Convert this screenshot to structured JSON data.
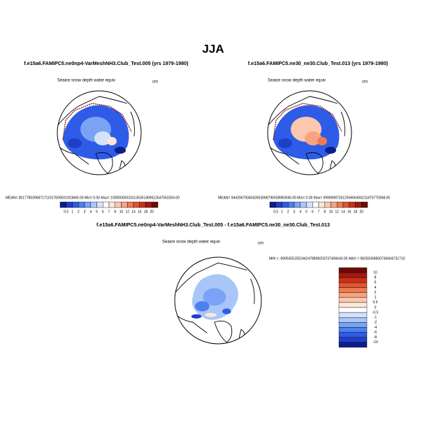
{
  "title": "JJA",
  "panels": [
    {
      "title": "f.e15a6.FAMIPC5.ne0np4-VarMeshNH3.Club_Test.005 (yrs 1979-1980)",
      "variable": "Seaice snow depth water equiv",
      "units": "cm",
      "stats": "MEAN= 8017780396871711917600501923840.00   Min=   0.00  Max= 100000003316135351409612647563264.00",
      "colorbar": {
        "levels": [
          0.5,
          1,
          2,
          3,
          4,
          5,
          6,
          7,
          8,
          10,
          12,
          14,
          16,
          18,
          20
        ],
        "colors": [
          "#0a1e8c",
          "#1f3fc8",
          "#2e5ce6",
          "#4c7ff0",
          "#7ba3f5",
          "#a9c6f8",
          "#d4e3fb",
          "#ffffff",
          "#fde6da",
          "#fbc7ad",
          "#f6a47f",
          "#ee7b52",
          "#e3542f",
          "#c9301a",
          "#a01910",
          "#6e0a06"
        ]
      }
    },
    {
      "title": "f.e15a6.FAMIPC5.ne30_ne30.Club_Test.013 (yrs 1979-1980)",
      "variable": "Seaice snow depth water equiv",
      "units": "cm",
      "stats": "MEAN= 9442967934042653068796928983040.00   Min=   0.00  Max= 99999987261256666405211875770368.00",
      "colorbar": {
        "levels": [
          0.5,
          1,
          2,
          3,
          4,
          5,
          6,
          7,
          8,
          10,
          12,
          14,
          16,
          18,
          20
        ],
        "colors": [
          "#0a1e8c",
          "#1f3fc8",
          "#2e5ce6",
          "#4c7ff0",
          "#7ba3f5",
          "#a9c6f8",
          "#d4e3fb",
          "#ffffff",
          "#fde6da",
          "#fbc7ad",
          "#f6a47f",
          "#ee7b52",
          "#e3542f",
          "#c9301a",
          "#a01910",
          "#6e0a06"
        ]
      }
    },
    {
      "title": "f.e15a6.FAMIPC5.ne0np4-VarMeshNH3.Club_Test.005 - f.e15a6.FAMIPC5.ne30_ne30.Club_Test.013",
      "variable": "Seaice snow depth water equiv",
      "units": "cm",
      "stats": "MIN = -99953551552442478898203737456640.00 MAX = 98250368500736604731710",
      "colorbar": {
        "levels": [
          10,
          8,
          6,
          4,
          2,
          1,
          0.5,
          0,
          -0.5,
          -1,
          -2,
          -4,
          -6,
          -8,
          -10
        ],
        "colors": [
          "#6e0a06",
          "#a01910",
          "#c9301a",
          "#e3542f",
          "#ee7b52",
          "#f6a47f",
          "#fbc7ad",
          "#fde6da",
          "#ffffff",
          "#d4e3fb",
          "#a9c6f8",
          "#7ba3f5",
          "#4c7ff0",
          "#2e5ce6",
          "#1f3fc8",
          "#0a1e8c"
        ]
      }
    }
  ]
}
